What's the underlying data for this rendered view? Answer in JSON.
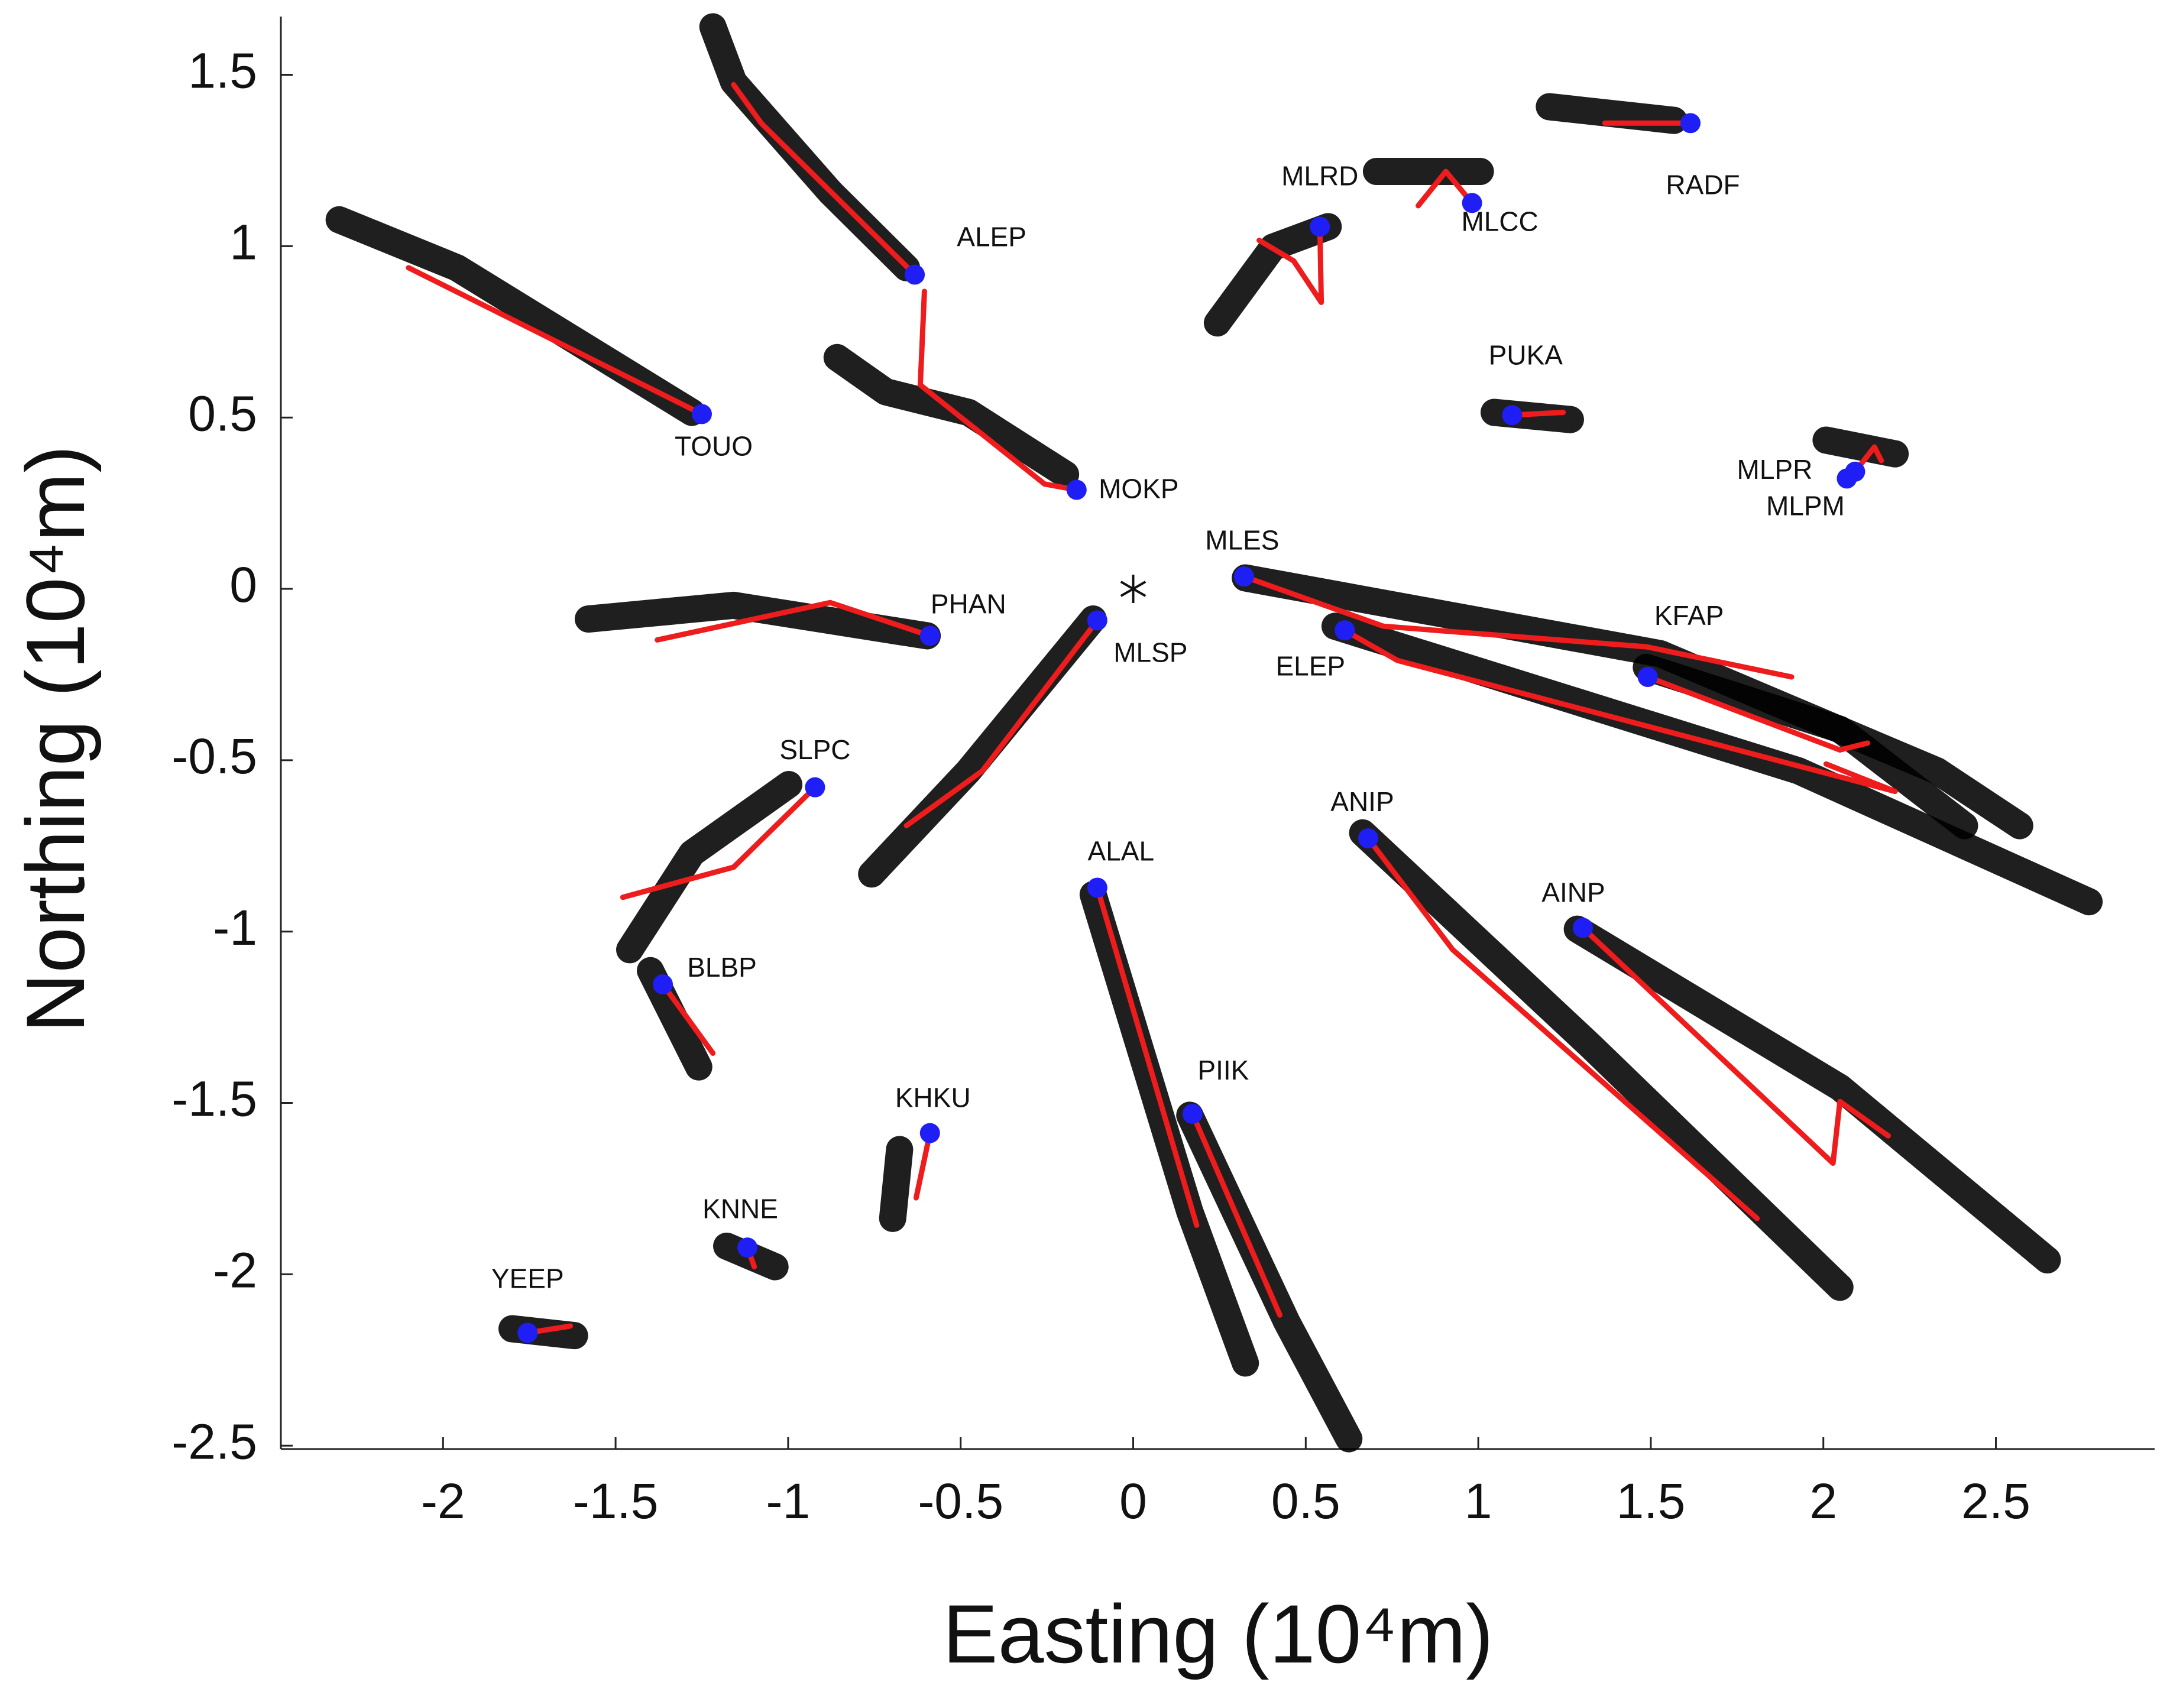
{
  "chart_data": {
    "type": "scatter",
    "xlabel": "Easting (10⁴m)",
    "ylabel": "Northing (10⁴m)",
    "xlim": [
      -2.47,
      2.96
    ],
    "ylim": [
      -2.51,
      1.67
    ],
    "xticks": [
      -2,
      -1.5,
      -1,
      -0.5,
      0,
      0.5,
      1,
      1.5,
      2,
      2.5
    ],
    "yticks": [
      -2.5,
      -2,
      -1.5,
      -1,
      -0.5,
      0,
      0.5,
      1,
      1.5
    ],
    "center": {
      "x": 0,
      "y": 0
    },
    "station_color": "#1f1ff5",
    "track_color": "#000000",
    "path_color": "#ee1c1c",
    "stations": [
      {
        "name": "ALEP",
        "x": -0.633,
        "y": 0.917,
        "track": {
          "x": [
            -1.218,
            -1.158,
            -0.878,
            -0.657
          ],
          "y": [
            1.64,
            1.479,
            1.158,
            0.937
          ]
        },
        "path": {
          "x": [
            -0.633,
            -1.078,
            -1.158
          ],
          "y": [
            0.917,
            1.359,
            1.471
          ]
        }
      },
      {
        "name": "TOUO",
        "x": -1.25,
        "y": 0.51,
        "track": {
          "x": [
            -2.301,
            -1.96,
            -1.279
          ],
          "y": [
            1.077,
            0.937,
            0.515
          ]
        },
        "path": {
          "x": [
            -1.25,
            -2.1
          ],
          "y": [
            0.51,
            0.937
          ]
        }
      },
      {
        "name": "MOKP",
        "x": -0.164,
        "y": 0.289,
        "track": {
          "x": [
            -0.858,
            -0.717,
            -0.477,
            -0.196
          ],
          "y": [
            0.675,
            0.575,
            0.515,
            0.334
          ]
        },
        "path": {
          "x": [
            -0.164,
            -0.257,
            -0.617,
            -0.605
          ],
          "y": [
            0.289,
            0.306,
            0.595,
            0.868
          ]
        }
      },
      {
        "name": "PHAN",
        "x": -0.589,
        "y": -0.137,
        "track": {
          "x": [
            -1.579,
            -1.158,
            -0.597
          ],
          "y": [
            -0.088,
            -0.048,
            -0.137
          ]
        },
        "path": {
          "x": [
            -0.589,
            -0.878,
            -1.379
          ],
          "y": [
            -0.137,
            -0.04,
            -0.149
          ]
        }
      },
      {
        "name": "MLSP",
        "x": -0.104,
        "y": -0.092,
        "track": {
          "x": [
            -0.758,
            -0.477,
            -0.116
          ],
          "y": [
            -0.832,
            -0.531,
            -0.088
          ]
        },
        "path": {
          "x": [
            -0.104,
            -0.437,
            -0.657
          ],
          "y": [
            -0.092,
            -0.531,
            -0.691
          ]
        }
      },
      {
        "name": "SLPC",
        "x": -0.922,
        "y": -0.579,
        "track": {
          "x": [
            -1.459,
            -1.279,
            -0.998
          ],
          "y": [
            -1.053,
            -0.772,
            -0.571
          ]
        },
        "path": {
          "x": [
            -0.922,
            -1.158,
            -1.479
          ],
          "y": [
            -0.579,
            -0.812,
            -0.9
          ]
        }
      },
      {
        "name": "BLBP",
        "x": -1.363,
        "y": -1.154,
        "track": {
          "x": [
            -1.399,
            -1.259
          ],
          "y": [
            -1.114,
            -1.395
          ]
        },
        "path": {
          "x": [
            -1.363,
            -1.218
          ],
          "y": [
            -1.154,
            -1.355
          ]
        }
      },
      {
        "name": "KHKU",
        "x": -0.589,
        "y": -1.588,
        "track": {
          "x": [
            -0.677,
            -0.697
          ],
          "y": [
            -1.636,
            -1.837
          ]
        },
        "path": {
          "x": [
            -0.589,
            -0.629
          ],
          "y": [
            -1.588,
            -1.777
          ]
        }
      },
      {
        "name": "KNNE",
        "x": -1.118,
        "y": -1.922,
        "track": {
          "x": [
            -1.178,
            -1.038
          ],
          "y": [
            -1.918,
            -1.978
          ]
        },
        "path": {
          "x": [
            -1.118,
            -1.098
          ],
          "y": [
            -1.922,
            -1.978
          ]
        }
      },
      {
        "name": "YEEP",
        "x": -1.755,
        "y": -2.171,
        "track": {
          "x": [
            -1.8,
            -1.619
          ],
          "y": [
            -2.159,
            -2.179
          ]
        },
        "path": {
          "x": [
            -1.755,
            -1.631
          ],
          "y": [
            -2.171,
            -2.151
          ]
        }
      },
      {
        "name": "ALAL",
        "x": -0.104,
        "y": -0.872,
        "track": {
          "x": [
            -0.116,
            0.164,
            0.325
          ],
          "y": [
            -0.892,
            -1.817,
            -2.259
          ]
        },
        "path": {
          "x": [
            -0.104,
            0.184
          ],
          "y": [
            -0.872,
            -1.857
          ]
        }
      },
      {
        "name": "PIIK",
        "x": 0.172,
        "y": -1.532,
        "track": {
          "x": [
            0.164,
            0.445,
            0.625
          ],
          "y": [
            -1.536,
            -2.139,
            -2.48
          ]
        },
        "path": {
          "x": [
            0.172,
            0.425
          ],
          "y": [
            -1.532,
            -2.119
          ]
        }
      },
      {
        "name": "ANIP",
        "x": 0.681,
        "y": -0.728,
        "track": {
          "x": [
            0.665,
            1.327,
            2.048
          ],
          "y": [
            -0.712,
            -1.335,
            -2.038
          ]
        },
        "path": {
          "x": [
            0.681,
            0.926,
            1.808
          ],
          "y": [
            -0.728,
            -1.053,
            -1.837
          ]
        }
      },
      {
        "name": "AINP",
        "x": 1.303,
        "y": -0.989,
        "track": {
          "x": [
            1.287,
            2.048,
            2.649
          ],
          "y": [
            -0.993,
            -1.455,
            -1.958
          ]
        },
        "path": {
          "x": [
            1.303,
            2.028,
            2.048,
            2.188
          ],
          "y": [
            -0.989,
            -1.676,
            -1.496,
            -1.596
          ]
        }
      },
      {
        "name": "ELEP",
        "x": 0.613,
        "y": -0.121,
        "track": {
          "x": [
            0.585,
            1.928,
            2.77
          ],
          "y": [
            -0.109,
            -0.531,
            -0.913
          ]
        },
        "path": {
          "x": [
            0.613,
            0.766,
            2.208,
            2.008
          ],
          "y": [
            -0.121,
            -0.209,
            -0.591,
            -0.511
          ]
        }
      },
      {
        "name": "KFAP",
        "x": 1.491,
        "y": -0.257,
        "track": {
          "x": [
            1.487,
            2.048,
            2.409
          ],
          "y": [
            -0.229,
            -0.41,
            -0.691
          ]
        },
        "path": {
          "x": [
            1.491,
            2.048,
            2.128
          ],
          "y": [
            -0.257,
            -0.47,
            -0.45
          ]
        }
      },
      {
        "name": "MLES",
        "x": 0.321,
        "y": 0.036,
        "track": {
          "x": [
            0.325,
            1.527,
            2.329,
            2.569
          ],
          "y": [
            0.032,
            -0.189,
            -0.531,
            -0.691
          ]
        },
        "path": {
          "x": [
            0.321,
            0.725,
            1.487,
            1.908
          ],
          "y": [
            0.036,
            -0.109,
            -0.169,
            -0.257
          ]
        }
      },
      {
        "name": "MLRD",
        "x": 0.541,
        "y": 1.057,
        "track": {
          "x": [
            0.244,
            0.405,
            0.565
          ],
          "y": [
            0.776,
            0.997,
            1.057
          ]
        },
        "path": {
          "x": [
            0.541,
            0.545,
            0.465,
            0.365
          ],
          "y": [
            1.057,
            0.836,
            0.957,
            1.017
          ]
        }
      },
      {
        "name": "MLCC",
        "x": 0.982,
        "y": 1.126,
        "track": {
          "x": [
            0.705,
            1.006
          ],
          "y": [
            1.218,
            1.218
          ]
        },
        "path": {
          "x": [
            0.982,
            0.906,
            0.826
          ],
          "y": [
            1.126,
            1.218,
            1.118
          ]
        }
      },
      {
        "name": "RADF",
        "x": 1.615,
        "y": 1.359,
        "track": {
          "x": [
            1.206,
            1.567
          ],
          "y": [
            1.407,
            1.367
          ]
        },
        "path": {
          "x": [
            1.615,
            1.367
          ],
          "y": [
            1.359,
            1.359
          ]
        }
      },
      {
        "name": "PUKA",
        "x": 1.098,
        "y": 0.507,
        "track": {
          "x": [
            1.046,
            1.267
          ],
          "y": [
            0.515,
            0.494
          ]
        },
        "path": {
          "x": [
            1.098,
            1.246
          ],
          "y": [
            0.507,
            0.515
          ]
        }
      },
      {
        "name": "MLPR",
        "x": 2.092,
        "y": 0.342,
        "track": {
          "x": [
            2.008,
            2.208
          ],
          "y": [
            0.434,
            0.394
          ]
        },
        "path": {
          "x": [
            2.092,
            2.148,
            2.168
          ],
          "y": [
            0.342,
            0.414,
            0.374
          ]
        }
      },
      {
        "name": "MLPM",
        "x": 2.068,
        "y": 0.322
      }
    ]
  }
}
